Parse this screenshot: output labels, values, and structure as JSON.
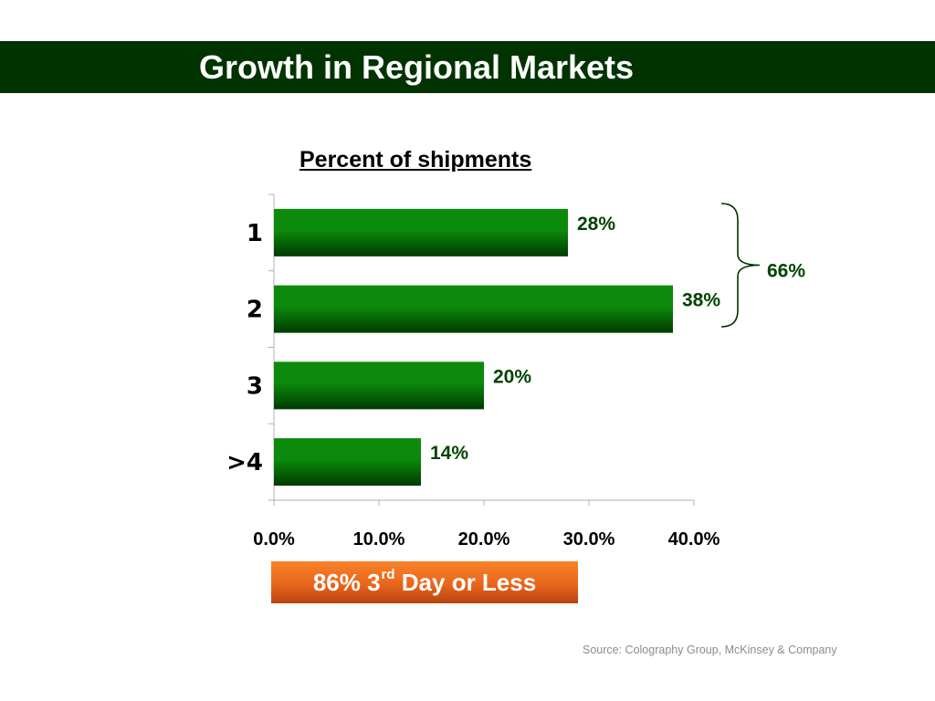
{
  "slide": {
    "title": "Growth in Regional Markets",
    "source": "Source: Colography  Group, McKinsey & Company",
    "callout": {
      "prefix": "86% 3",
      "superscript": "rd",
      "suffix": " Day or Less"
    }
  },
  "colors": {
    "title_bar": "#003300",
    "bar_top": "#0b8a0b",
    "bar_bottom": "#003a00",
    "value_label": "#004400",
    "callout": "#f07424"
  },
  "chart_data": {
    "type": "bar",
    "orientation": "horizontal",
    "title": "Percent of shipments",
    "categories": [
      "1",
      "2",
      "3",
      ">4"
    ],
    "values": [
      28,
      38,
      20,
      14
    ],
    "value_labels": [
      "28%",
      "38%",
      "20%",
      "14%"
    ],
    "xlim": [
      0,
      40
    ],
    "x_ticks": [
      0,
      10,
      20,
      30,
      40
    ],
    "x_tick_labels": [
      "0.0%",
      "10.0%",
      "20.0%",
      "30.0%",
      "40.0%"
    ],
    "grid": false,
    "annotations": [
      {
        "type": "brace",
        "spans_categories": [
          "1",
          "2"
        ],
        "label": "66%"
      }
    ]
  }
}
